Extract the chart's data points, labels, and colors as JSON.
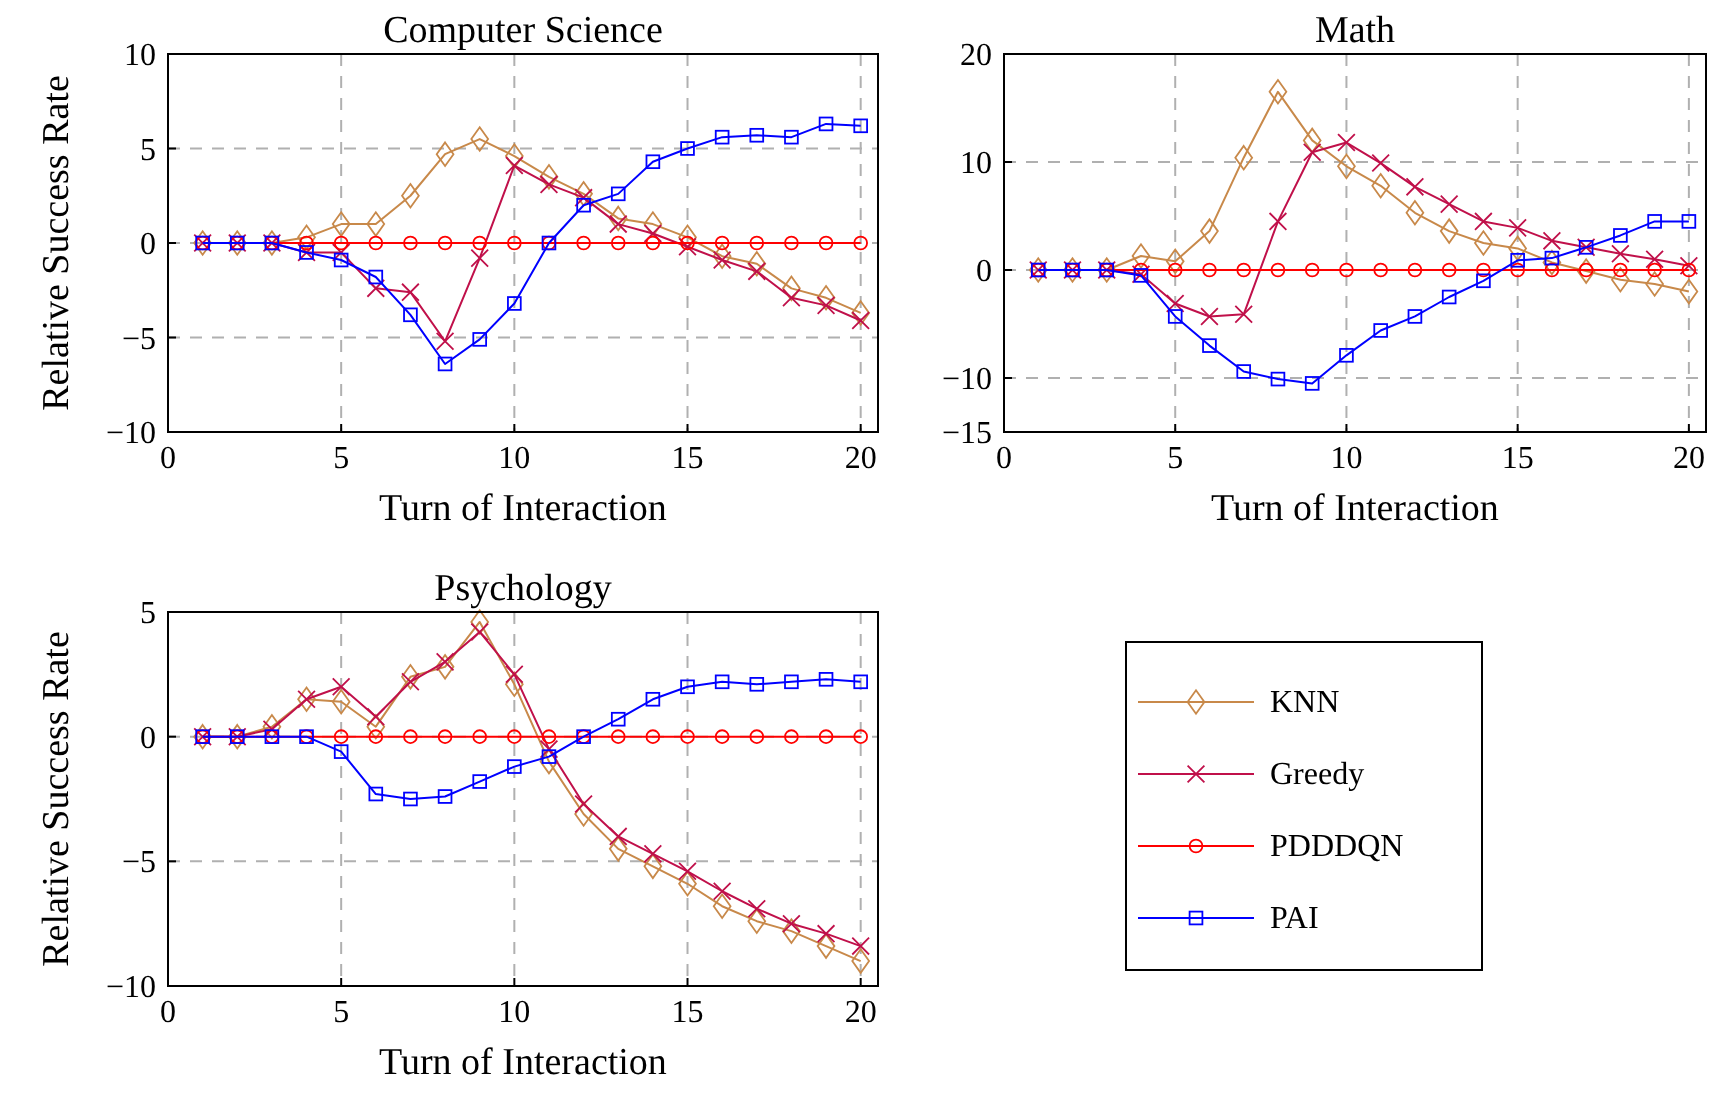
{
  "chart_data": [
    {
      "type": "line",
      "title": "Computer Science",
      "xlabel": "Turn of Interaction",
      "ylabel": "Relative Success Rate",
      "x": [
        1,
        2,
        3,
        4,
        5,
        6,
        7,
        8,
        9,
        10,
        11,
        12,
        13,
        14,
        15,
        16,
        17,
        18,
        19,
        20
      ],
      "xlim": [
        0,
        20.5
      ],
      "xticks": [
        0,
        5,
        10,
        15,
        20
      ],
      "ylim": [
        -10,
        10
      ],
      "yticks": [
        -10,
        -5,
        0,
        5,
        10
      ],
      "grid": true,
      "legend": false,
      "series": [
        {
          "color": "#c8894a",
          "marker": "diamond",
          "values": [
            0,
            0,
            0,
            0.3,
            1.0,
            1.0,
            2.5,
            4.7,
            5.5,
            4.6,
            3.5,
            2.6,
            1.3,
            1.0,
            0.3,
            -0.7,
            -1.1,
            -2.4,
            -2.9,
            -3.7
          ]
        },
        {
          "color": "#c0104a",
          "marker": "cross",
          "values": [
            0,
            0,
            0,
            -0.5,
            -0.5,
            -2.4,
            -2.6,
            -5.2,
            -0.8,
            4.1,
            3.1,
            2.4,
            1.0,
            0.5,
            -0.2,
            -0.9,
            -1.5,
            -2.9,
            -3.3,
            -4.1
          ]
        },
        {
          "color": "#ff0000",
          "marker": "circle",
          "values": [
            0,
            0,
            0,
            0,
            0,
            0,
            0,
            0,
            0,
            0,
            0,
            0,
            0,
            0,
            0,
            0,
            0,
            0,
            0,
            0
          ]
        },
        {
          "color": "#0000ff",
          "marker": "square",
          "values": [
            0,
            0,
            0,
            -0.5,
            -0.9,
            -1.8,
            -3.8,
            -6.4,
            -5.1,
            -3.2,
            0,
            2.0,
            2.6,
            4.3,
            5.0,
            5.6,
            5.7,
            5.6,
            6.3,
            6.2
          ]
        }
      ]
    },
    {
      "type": "line",
      "title": "Math",
      "xlabel": "Turn of Interaction",
      "x": [
        1,
        2,
        3,
        4,
        5,
        6,
        7,
        8,
        9,
        10,
        11,
        12,
        13,
        14,
        15,
        16,
        17,
        18,
        19,
        20
      ],
      "xlim": [
        0,
        20.5
      ],
      "xticks": [
        0,
        5,
        10,
        15,
        20
      ],
      "ylim": [
        -15,
        20
      ],
      "yticks": [
        -15,
        -10,
        0,
        10,
        20
      ],
      "grid": true,
      "legend": false,
      "series": [
        {
          "color": "#c8894a",
          "marker": "diamond",
          "values": [
            0,
            0,
            0,
            1.3,
            0.8,
            3.6,
            10.4,
            16.5,
            12.0,
            9.6,
            7.8,
            5.3,
            3.6,
            2.5,
            2.0,
            0.7,
            -0.1,
            -0.9,
            -1.3,
            -2.0
          ]
        },
        {
          "color": "#c0104a",
          "marker": "cross",
          "values": [
            0,
            0,
            0,
            -0.4,
            -3.1,
            -4.3,
            -4.1,
            4.5,
            10.9,
            11.8,
            9.9,
            7.7,
            6.1,
            4.5,
            3.9,
            2.7,
            2.1,
            1.5,
            1.0,
            0.4
          ]
        },
        {
          "color": "#ff0000",
          "marker": "circle",
          "values": [
            0,
            0,
            0,
            0,
            0,
            0,
            0,
            0,
            0,
            0,
            0,
            0,
            0,
            0,
            0,
            0,
            0,
            0,
            0,
            0
          ]
        },
        {
          "color": "#0000ff",
          "marker": "square",
          "values": [
            0,
            0,
            0,
            -0.5,
            -4.3,
            -7.0,
            -9.4,
            -10.1,
            -10.5,
            -7.9,
            -5.6,
            -4.3,
            -2.5,
            -1.0,
            0.9,
            1.1,
            2.1,
            3.2,
            4.5,
            4.5
          ]
        }
      ]
    },
    {
      "type": "line",
      "title": "Psychology",
      "xlabel": "Turn of Interaction",
      "ylabel": "Relative Success Rate",
      "x": [
        1,
        2,
        3,
        4,
        5,
        6,
        7,
        8,
        9,
        10,
        11,
        12,
        13,
        14,
        15,
        16,
        17,
        18,
        19,
        20
      ],
      "xlim": [
        0,
        20.5
      ],
      "xticks": [
        0,
        5,
        10,
        15,
        20
      ],
      "ylim": [
        -10,
        5
      ],
      "yticks": [
        -10,
        -5,
        0,
        5
      ],
      "grid": true,
      "legend": "right",
      "series": [
        {
          "name": "KNN",
          "color": "#c8894a",
          "marker": "diamond",
          "values": [
            0,
            0,
            0.4,
            1.5,
            1.4,
            0.4,
            2.4,
            2.8,
            4.6,
            2.1,
            -1.0,
            -3.1,
            -4.5,
            -5.2,
            -5.9,
            -6.8,
            -7.4,
            -7.8,
            -8.4,
            -9.0
          ]
        },
        {
          "name": "Greedy",
          "color": "#c0104a",
          "marker": "cross",
          "values": [
            0,
            0,
            0.3,
            1.5,
            2.0,
            0.8,
            2.2,
            3.0,
            4.2,
            2.5,
            -0.5,
            -2.7,
            -4.0,
            -4.7,
            -5.4,
            -6.2,
            -6.9,
            -7.5,
            -7.9,
            -8.4
          ]
        },
        {
          "name": "PDDDQN",
          "color": "#ff0000",
          "marker": "circle",
          "values": [
            0,
            0,
            0,
            0,
            0,
            0,
            0,
            0,
            0,
            0,
            0,
            0,
            0,
            0,
            0,
            0,
            0,
            0,
            0,
            0
          ]
        },
        {
          "name": "PAI",
          "color": "#0000ff",
          "marker": "square",
          "values": [
            0,
            0,
            0,
            0,
            -0.6,
            -2.3,
            -2.5,
            -2.4,
            -1.8,
            -1.2,
            -0.8,
            0,
            0.7,
            1.5,
            2.0,
            2.2,
            2.1,
            2.2,
            2.3,
            2.2
          ]
        }
      ]
    }
  ]
}
